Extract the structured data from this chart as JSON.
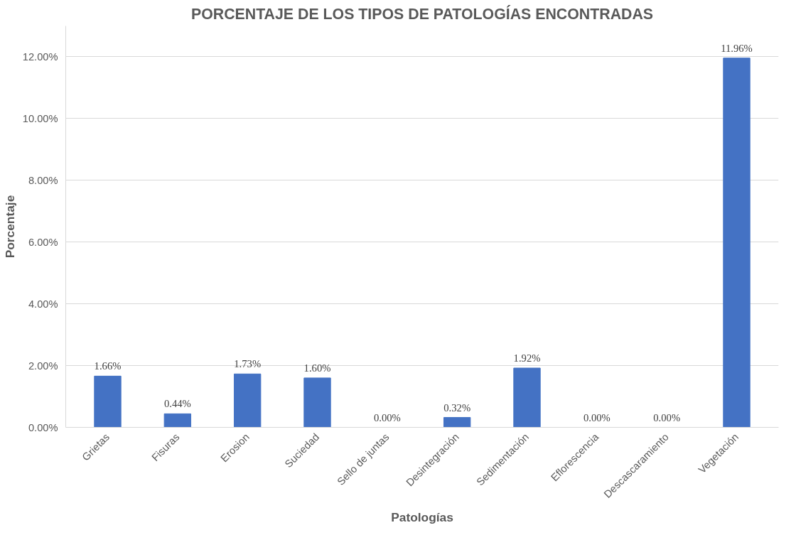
{
  "chart_data": {
    "type": "bar",
    "title": "PORCENTAJE DE LOS TIPOS DE PATOLOGÍAS ENCONTRADAS",
    "xlabel": "Patologías",
    "ylabel": "Porcentaje",
    "categories": [
      "Grietas",
      "Fisuras",
      "Erosion",
      "Suciedad",
      "Sello de juntas",
      "Desintegración",
      "Sedimentación",
      "Eflorescencia",
      "Descascaramiento",
      "Vegetación"
    ],
    "values": [
      1.66,
      0.44,
      1.73,
      1.6,
      0.0,
      0.32,
      1.92,
      0.0,
      0.0,
      11.96
    ],
    "value_labels": [
      "1.66%",
      "0.44%",
      "1.73%",
      "1.60%",
      "0.00%",
      "0.32%",
      "1.92%",
      "0.00%",
      "0.00%",
      "11.96%"
    ],
    "color": "#4472c4",
    "ylim": [
      0,
      13
    ],
    "yticks": [
      {
        "value": 0,
        "label": "0.00%"
      },
      {
        "value": 2,
        "label": "2.00%"
      },
      {
        "value": 4,
        "label": "4.00%"
      },
      {
        "value": 6,
        "label": "6.00%"
      },
      {
        "value": 8,
        "label": "8.00%"
      },
      {
        "value": 10,
        "label": "10.00%"
      },
      {
        "value": 12,
        "label": "12.00%"
      }
    ],
    "grid": "y"
  }
}
